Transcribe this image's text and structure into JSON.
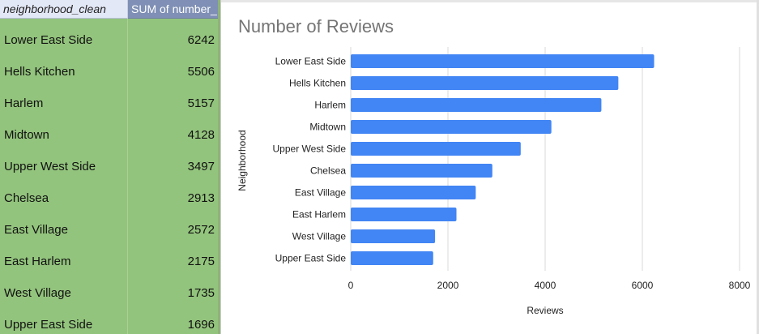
{
  "pivot_table": {
    "headers": [
      "neighborhood_clean",
      "SUM of number_"
    ],
    "rows": [
      {
        "neighborhood": "Lower East Side",
        "sum": "6242"
      },
      {
        "neighborhood": "Hells Kitchen",
        "sum": "5506"
      },
      {
        "neighborhood": "Harlem",
        "sum": "5157"
      },
      {
        "neighborhood": "Midtown",
        "sum": "4128"
      },
      {
        "neighborhood": "Upper West Side",
        "sum": "3497"
      },
      {
        "neighborhood": "Chelsea",
        "sum": "2913"
      },
      {
        "neighborhood": "East Village",
        "sum": "2572"
      },
      {
        "neighborhood": "East Harlem",
        "sum": "2175"
      },
      {
        "neighborhood": "West Village",
        "sum": "1735"
      },
      {
        "neighborhood": "Upper East Side",
        "sum": "1696"
      }
    ]
  },
  "colors": {
    "row_fill": "#93c47d",
    "header_col1": "#e3e8f7",
    "header_col2": "#7f8fb5",
    "bar": "#4285f4",
    "grid": "#d9d9d9",
    "title": "#757575"
  },
  "chart_data": {
    "type": "bar",
    "orientation": "horizontal",
    "title": "Number of Reviews",
    "xlabel": "Reviews",
    "ylabel": "Neighborhood",
    "categories": [
      "Lower East Side",
      "Hells Kitchen",
      "Harlem",
      "Midtown",
      "Upper West Side",
      "Chelsea",
      "East Village",
      "East Harlem",
      "West Village",
      "Upper East Side"
    ],
    "values": [
      6242,
      5506,
      5157,
      4128,
      3497,
      2913,
      2572,
      2175,
      1735,
      1696
    ],
    "xlim": [
      0,
      8000
    ],
    "xticks": [
      0,
      2000,
      4000,
      6000,
      8000
    ],
    "grid": true,
    "legend": "none"
  }
}
